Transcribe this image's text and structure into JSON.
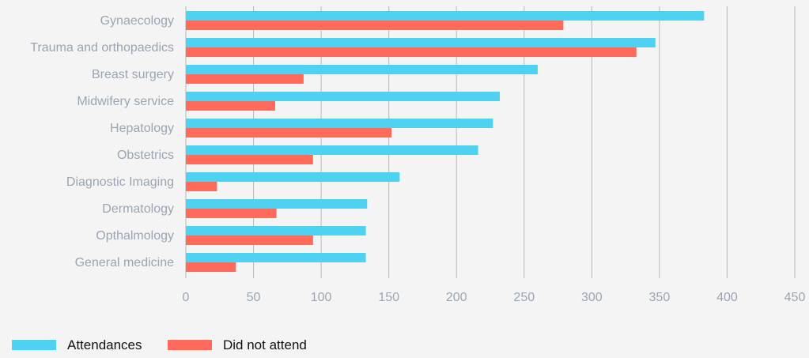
{
  "chart_data": {
    "type": "bar",
    "orientation": "horizontal",
    "categories": [
      "Gynaecology",
      "Trauma and orthopaedics",
      "Breast surgery",
      "Midwifery service",
      "Hepatology",
      "Obstetrics",
      "Diagnostic Imaging",
      "Dermatology",
      "Opthalmology",
      "General medicine"
    ],
    "series": [
      {
        "name": "Attendances",
        "color": "#4fd1f2",
        "values": [
          383,
          347,
          260,
          232,
          227,
          216,
          158,
          134,
          133,
          133
        ]
      },
      {
        "name": "Did not attend",
        "color": "#ff6b5a",
        "values": [
          279,
          333,
          87,
          66,
          152,
          94,
          23,
          67,
          94,
          37
        ]
      }
    ],
    "xlim": [
      0,
      450
    ],
    "xticks": [
      "0",
      "50",
      "100",
      "150",
      "200",
      "250",
      "300",
      "350",
      "400",
      "450"
    ],
    "grid": true,
    "legend_position": "bottom-left"
  }
}
